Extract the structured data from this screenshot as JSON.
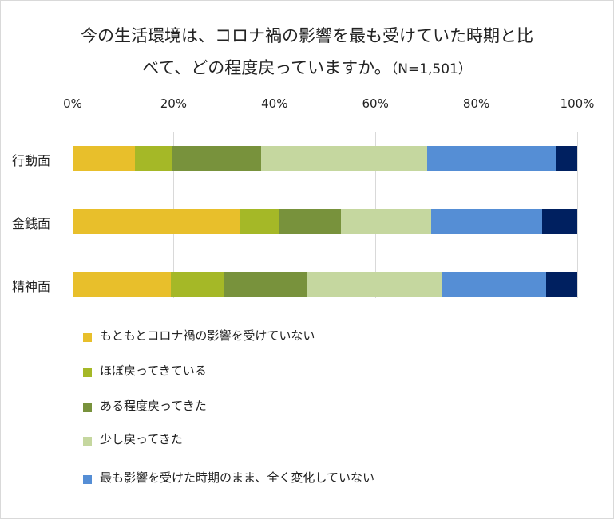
{
  "chart_data": {
    "type": "bar",
    "orientation": "horizontal-stacked-100",
    "title_line1": "今の生活環境は、コロナ禍の影響を最も受けていた時期と比",
    "title_line2": "べて、どの程度戻っていますか。",
    "title_n": "（N=1,501）",
    "xlim": [
      0,
      100
    ],
    "x_ticks": [
      "0%",
      "20%",
      "40%",
      "60%",
      "80%",
      "100%"
    ],
    "grid": true,
    "legend_position": "bottom",
    "categories": [
      "行動面",
      "金銭面",
      "精神面"
    ],
    "series": [
      {
        "name": "もともとコロナ禍の影響を受けていない",
        "color": "#e8bf2b",
        "values": [
          12.3,
          33.1,
          19.5
        ]
      },
      {
        "name": "ほぼ戻ってきている",
        "color": "#a5b827",
        "values": [
          7.5,
          7.7,
          10.4
        ]
      },
      {
        "name": "ある程度戻ってきた",
        "color": "#78923c",
        "values": [
          17.6,
          12.4,
          16.4
        ]
      },
      {
        "name": "少し戻ってきた",
        "color": "#c5d79f",
        "values": [
          32.9,
          17.9,
          26.8
        ]
      },
      {
        "name": "最も影響を受けた時期のまま、全く変化していない",
        "color": "#558ed5",
        "values": [
          25.4,
          21.9,
          20.7
        ]
      },
      {
        "color": "#002060",
        "values": [
          4.3,
          7.0,
          6.2
        ]
      }
    ]
  }
}
